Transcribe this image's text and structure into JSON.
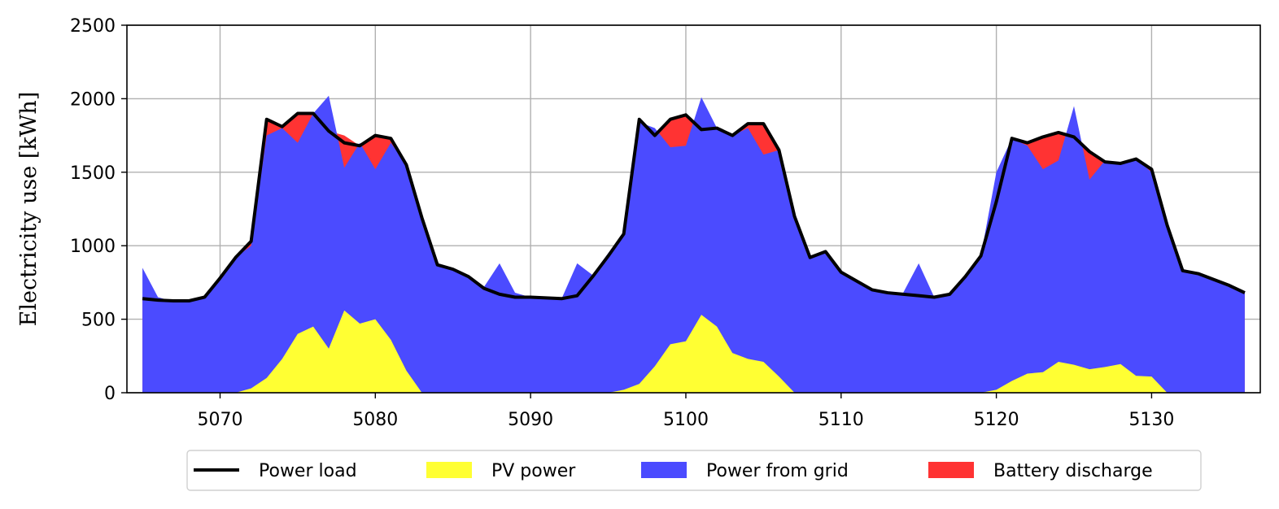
{
  "chart_data": {
    "type": "area",
    "title": "",
    "xlabel": "",
    "ylabel": "Electricity use [kWh]",
    "xlim": [
      5064,
      5137
    ],
    "ylim": [
      0,
      2500
    ],
    "xticks": [
      5070,
      5080,
      5090,
      5100,
      5110,
      5120,
      5130
    ],
    "yticks": [
      0,
      500,
      1000,
      1500,
      2000,
      2500
    ],
    "grid": true,
    "legend_position": "bottom-center",
    "x": [
      5065,
      5066,
      5067,
      5068,
      5069,
      5070,
      5071,
      5072,
      5073,
      5074,
      5075,
      5076,
      5077,
      5078,
      5079,
      5080,
      5081,
      5082,
      5083,
      5084,
      5085,
      5086,
      5087,
      5088,
      5089,
      5090,
      5091,
      5092,
      5093,
      5094,
      5095,
      5096,
      5097,
      5098,
      5099,
      5100,
      5101,
      5102,
      5103,
      5104,
      5105,
      5106,
      5107,
      5108,
      5109,
      5110,
      5111,
      5112,
      5113,
      5114,
      5115,
      5116,
      5117,
      5118,
      5119,
      5120,
      5121,
      5122,
      5123,
      5124,
      5125,
      5126,
      5127,
      5128,
      5129,
      5130,
      5131,
      5132,
      5133,
      5134,
      5135,
      5136
    ],
    "series": [
      {
        "name": "PV power",
        "kind": "area",
        "color": "#ffff33",
        "values": [
          0,
          0,
          0,
          0,
          0,
          0,
          0,
          30,
          100,
          230,
          400,
          450,
          300,
          560,
          470,
          500,
          360,
          150,
          0,
          0,
          0,
          0,
          0,
          0,
          0,
          0,
          0,
          0,
          0,
          0,
          0,
          20,
          60,
          180,
          330,
          350,
          530,
          450,
          270,
          230,
          210,
          110,
          0,
          0,
          0,
          0,
          0,
          0,
          0,
          0,
          0,
          0,
          0,
          0,
          0,
          20,
          80,
          130,
          140,
          210,
          190,
          160,
          175,
          195,
          115,
          110,
          0,
          0,
          0,
          0,
          0,
          0
        ]
      },
      {
        "name": "Power from grid",
        "kind": "area",
        "color": "#4b4bff",
        "values": [
          850,
          650,
          620,
          625,
          650,
          770,
          920,
          1000,
          1750,
          1800,
          1700,
          1900,
          2020,
          1530,
          1700,
          1520,
          1700,
          1550,
          1200,
          870,
          840,
          790,
          720,
          880,
          680,
          650,
          650,
          640,
          880,
          800,
          950,
          1080,
          1840,
          1800,
          1670,
          1680,
          2010,
          1800,
          1750,
          1800,
          1620,
          1650,
          1200,
          920,
          960,
          820,
          760,
          700,
          680,
          680,
          880,
          650,
          670,
          800,
          930,
          1500,
          1730,
          1680,
          1520,
          1580,
          1950,
          1450,
          1580,
          1560,
          1590,
          1500,
          1120,
          820,
          800,
          770,
          730,
          680
        ]
      },
      {
        "name": "Battery discharge",
        "kind": "area",
        "color": "#ff3333",
        "values": [
          640,
          630,
          625,
          625,
          650,
          780,
          920,
          1030,
          1860,
          1810,
          1900,
          1900,
          1780,
          1750,
          1680,
          1750,
          1730,
          1550,
          1190,
          870,
          840,
          790,
          710,
          670,
          650,
          650,
          645,
          640,
          660,
          790,
          930,
          1080,
          1860,
          1750,
          1870,
          1890,
          1790,
          1800,
          1750,
          1830,
          1830,
          1650,
          1200,
          920,
          960,
          820,
          760,
          700,
          680,
          670,
          660,
          650,
          670,
          790,
          930,
          1300,
          1730,
          1700,
          1740,
          1770,
          1740,
          1640,
          1570,
          1560,
          1590,
          1520,
          1140,
          830,
          810,
          770,
          730,
          680
        ]
      },
      {
        "name": "Power load",
        "kind": "line",
        "color": "#000000",
        "values": [
          640,
          630,
          625,
          625,
          650,
          780,
          920,
          1030,
          1860,
          1810,
          1900,
          1900,
          1780,
          1700,
          1680,
          1750,
          1730,
          1550,
          1190,
          870,
          840,
          790,
          710,
          670,
          650,
          650,
          645,
          640,
          660,
          790,
          930,
          1080,
          1860,
          1750,
          1860,
          1890,
          1790,
          1800,
          1750,
          1830,
          1830,
          1650,
          1200,
          920,
          960,
          820,
          760,
          700,
          680,
          670,
          660,
          650,
          670,
          790,
          930,
          1300,
          1730,
          1700,
          1740,
          1770,
          1740,
          1640,
          1570,
          1560,
          1590,
          1520,
          1140,
          830,
          810,
          770,
          730,
          680
        ]
      }
    ]
  }
}
